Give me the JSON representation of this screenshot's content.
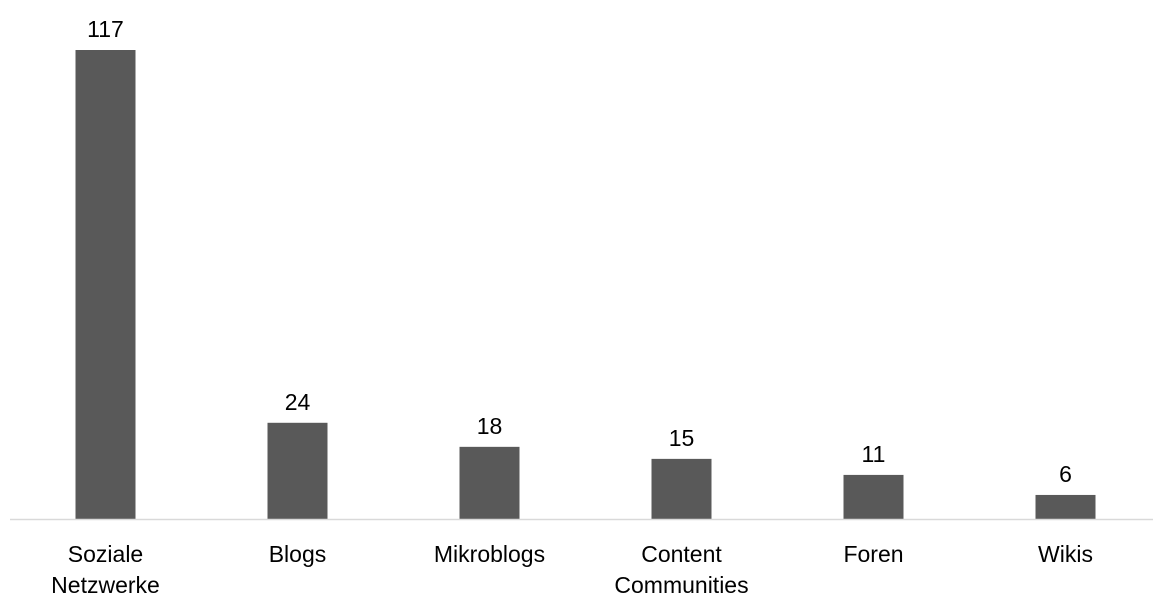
{
  "chart_data": {
    "type": "bar",
    "title": "",
    "xlabel": "",
    "ylabel": "",
    "categories": [
      [
        "Soziale",
        "Netzwerke"
      ],
      [
        "Blogs"
      ],
      [
        "Mikroblogs"
      ],
      [
        "Content",
        "Communities"
      ],
      [
        "Foren"
      ],
      [
        "Wikis"
      ]
    ],
    "values": [
      117,
      24,
      18,
      15,
      11,
      6
    ],
    "ylim": [
      0,
      117
    ],
    "grid": false,
    "legend": "none",
    "data_labels": true,
    "colors": {
      "bar": "#595959",
      "axis": "#d9d9d9",
      "text": "#000000"
    }
  }
}
